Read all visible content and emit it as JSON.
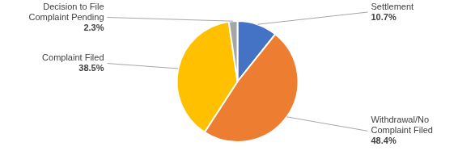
{
  "chart_data": {
    "type": "pie",
    "categories": [
      "Settlement",
      "Withdrawal/No Complaint Filed",
      "Complaint Filed",
      "Decision to File Complaint Pending"
    ],
    "values": [
      10.7,
      48.4,
      38.5,
      2.3
    ],
    "value_labels": [
      "10.7%",
      "48.4%",
      "38.5%",
      "2.3%"
    ],
    "colors": [
      "#4472c4",
      "#ed7d31",
      "#ffc000",
      "#a5a5a5"
    ],
    "data_labels": true
  }
}
